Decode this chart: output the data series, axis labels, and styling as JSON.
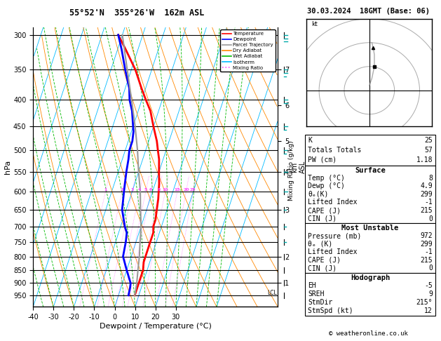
{
  "title_left": "55°52'N  355°26'W  162m ASL",
  "title_right": "30.03.2024  18GMT (Base: 06)",
  "xlabel": "Dewpoint / Temperature (°C)",
  "ylabel_left": "hPa",
  "ylabel_right": "km\nASL",
  "pressure_levels": [
    300,
    350,
    400,
    450,
    500,
    550,
    600,
    650,
    700,
    750,
    800,
    850,
    900,
    950
  ],
  "temp_min": -40,
  "temp_max": 35,
  "temp_ticks": [
    -40,
    -30,
    -20,
    -10,
    0,
    10,
    20,
    30
  ],
  "km_ticks": [
    1,
    2,
    3,
    4,
    5,
    6,
    7
  ],
  "km_pressures": [
    900,
    800,
    650,
    550,
    480,
    410,
    350
  ],
  "temperature_profile": {
    "pressure": [
      300,
      320,
      350,
      380,
      400,
      420,
      450,
      480,
      500,
      520,
      550,
      580,
      600,
      620,
      650,
      680,
      700,
      720,
      750,
      780,
      800,
      820,
      850,
      880,
      900,
      920,
      950
    ],
    "temp": [
      -42,
      -36,
      -28,
      -22,
      -18,
      -14,
      -10,
      -6,
      -4,
      -2,
      0,
      2,
      3,
      4,
      5,
      6,
      6,
      7,
      7,
      7,
      7,
      7,
      8,
      8,
      8,
      8,
      8
    ],
    "color": "#FF0000",
    "linewidth": 2.0
  },
  "dewpoint_profile": {
    "pressure": [
      300,
      320,
      350,
      380,
      400,
      420,
      450,
      460,
      480,
      500,
      520,
      550,
      600,
      650,
      700,
      720,
      750,
      800,
      850,
      900,
      920,
      950
    ],
    "temp": [
      -42,
      -38,
      -33,
      -28,
      -26,
      -23,
      -20,
      -19,
      -18,
      -18,
      -17,
      -16,
      -14,
      -12,
      -8,
      -6,
      -5,
      -4,
      0,
      4,
      4.5,
      4.9
    ],
    "color": "#0000FF",
    "linewidth": 2.0
  },
  "parcel_profile": {
    "pressure": [
      950,
      900,
      850,
      800,
      750,
      700,
      650,
      600,
      550,
      500,
      450,
      400,
      350,
      300
    ],
    "temp": [
      8,
      7,
      5.5,
      4,
      2,
      0,
      -3,
      -6,
      -10,
      -14,
      -19,
      -25,
      -32,
      -40
    ],
    "color": "#999999",
    "linewidth": 1.5
  },
  "isotherm_color": "#00BBFF",
  "dry_adiabat_color": "#FF8800",
  "wet_adiabat_color": "#00BB00",
  "mixing_ratio_color": "#FF44FF",
  "background_color": "#FFFFFF",
  "legend_entries": [
    "Temperature",
    "Dewpoint",
    "Parcel Trajectory",
    "Dry Adiabat",
    "Wet Adiabat",
    "Isotherm",
    "Mixing Ratio"
  ],
  "legend_colors": [
    "#FF0000",
    "#0000FF",
    "#999999",
    "#FF8800",
    "#00BB00",
    "#00BBFF",
    "#FF44FF"
  ],
  "legend_styles": [
    "solid",
    "solid",
    "solid",
    "solid",
    "solid",
    "solid",
    "dotted"
  ],
  "stats_text": [
    [
      "K",
      "25"
    ],
    [
      "Totals Totals",
      "57"
    ],
    [
      "PW (cm)",
      "1.18"
    ]
  ],
  "surface_text": [
    [
      "Temp (°C)",
      "8"
    ],
    [
      "Dewp (°C)",
      "4.9"
    ],
    [
      "θₑ(K)",
      "299"
    ],
    [
      "Lifted Index",
      "-1"
    ],
    [
      "CAPE (J)",
      "215"
    ],
    [
      "CIN (J)",
      "0"
    ]
  ],
  "unstable_text": [
    [
      "Pressure (mb)",
      "972"
    ],
    [
      "θₑ (K)",
      "299"
    ],
    [
      "Lifted Index",
      "-1"
    ],
    [
      "CAPE (J)",
      "215"
    ],
    [
      "CIN (J)",
      "0"
    ]
  ],
  "hodograph_text": [
    [
      "EH",
      "-5"
    ],
    [
      "SREH",
      "9"
    ],
    [
      "StmDir",
      "215°"
    ],
    [
      "StmSpd (kt)",
      "12"
    ]
  ],
  "copyright": "© weatheronline.co.uk",
  "lcl_pressure": 940,
  "wind_barb_pressures": [
    300,
    350,
    400,
    450,
    500,
    550,
    600,
    650,
    700,
    750,
    800,
    850,
    900,
    950
  ],
  "wind_barb_speeds": [
    30,
    25,
    20,
    18,
    15,
    12,
    10,
    8,
    6,
    5,
    4,
    3,
    2,
    1
  ]
}
